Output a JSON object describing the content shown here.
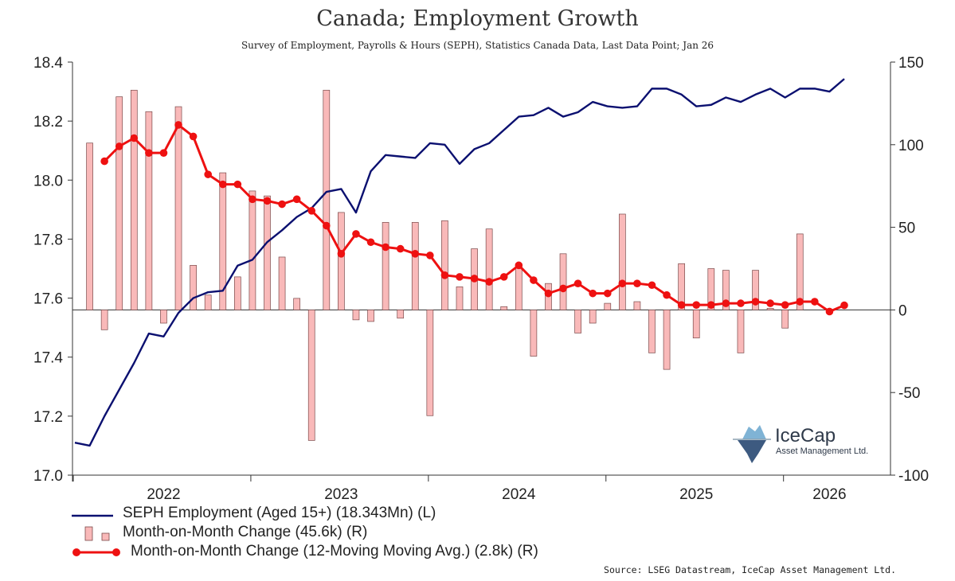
{
  "chart_data": {
    "type": "bar+line",
    "title": "Canada; Employment Growth",
    "subtitle": "Survey of Employment, Payrolls & Hours (SEPH), Statistics Canada Data, Last Data Point; Jan 26",
    "left_axis": {
      "ylim": [
        17.0,
        18.4
      ],
      "ticks": [
        "17.0",
        "17.2",
        "17.4",
        "17.6",
        "17.8",
        "18.0",
        "18.2",
        "18.4"
      ]
    },
    "right_axis": {
      "ylim": [
        -100,
        150
      ],
      "ticks": [
        "-100",
        "-50",
        "0",
        "50",
        "100",
        "150"
      ]
    },
    "x_year_labels": [
      "2022",
      "2023",
      "2024",
      "2025",
      "2026"
    ],
    "series": [
      {
        "name": "SEPH Employment (Aged 15+) (18.343Mn) (L)",
        "type": "line",
        "axis": "left",
        "color": "#0b1070",
        "values": [
          17.11,
          17.1,
          17.2,
          17.29,
          17.38,
          17.48,
          17.47,
          17.55,
          17.6,
          17.62,
          17.625,
          17.71,
          17.73,
          17.79,
          17.83,
          17.875,
          17.905,
          17.96,
          17.97,
          17.89,
          18.03,
          18.085,
          18.08,
          18.075,
          18.125,
          18.12,
          18.055,
          18.105,
          18.125,
          18.17,
          18.215,
          18.22,
          18.245,
          18.215,
          18.23,
          18.265,
          18.25,
          18.245,
          18.25,
          18.31,
          18.31,
          18.29,
          18.25,
          18.255,
          18.28,
          18.265,
          18.29,
          18.31,
          18.28,
          18.31,
          18.31,
          18.3,
          18.343
        ]
      },
      {
        "name": "Month-on-Month Change (45.6k) (R)",
        "type": "bar",
        "axis": "right",
        "color": "#f9b9b9",
        "values": [
          101,
          -12,
          129,
          133,
          120,
          -8,
          123,
          27,
          9,
          83,
          20,
          72,
          69,
          32,
          7,
          -79,
          133,
          59,
          -6,
          -7,
          53,
          -5,
          53,
          -64,
          54,
          14,
          37,
          49,
          2,
          28,
          -28,
          16,
          34,
          -14,
          -8,
          4,
          58,
          5,
          -26,
          -36,
          28,
          -17,
          25,
          24,
          -26,
          24,
          1,
          -11,
          46
        ],
        "start_index": 1
      },
      {
        "name": "Month-on-Month Change (12-Moving Moving Avg.) (2.8k) (R)",
        "type": "line",
        "axis": "right",
        "color": "#ee1111",
        "values": [
          90,
          99,
          104,
          95,
          95,
          112,
          105,
          82,
          76,
          76,
          67,
          66,
          64,
          67,
          60,
          51,
          34,
          46,
          41,
          38,
          37,
          34,
          33,
          21,
          20,
          19,
          17,
          20,
          27,
          18,
          10,
          13,
          16,
          10,
          10,
          16,
          16,
          15,
          9,
          3,
          3,
          3,
          4,
          4,
          5,
          4,
          3,
          5,
          5,
          -1,
          2.8
        ]
      }
    ],
    "legend": [
      "SEPH Employment (Aged 15+) (18.343Mn) (L)",
      "Month-on-Month Change (45.6k) (R)",
      "Month-on-Month Change (12-Moving Moving Avg.) (2.8k) (R)"
    ],
    "legend_position": "bottom-left",
    "source": "Source: LSEG Datastream, IceCap Asset Management Ltd."
  },
  "logo": {
    "name": "IceCap",
    "sub": "Asset Management Ltd."
  }
}
